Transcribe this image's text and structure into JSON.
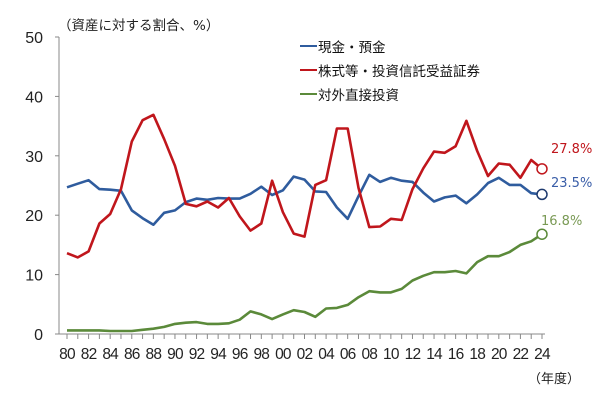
{
  "chart_data": {
    "type": "line",
    "title": "",
    "ylabel": "（資産に対する割合、%）",
    "xlabel": "（年度）",
    "ylim": [
      0,
      50
    ],
    "yticks": [
      0,
      10,
      20,
      30,
      40,
      50
    ],
    "grid": false,
    "legend_position": "top-right inside",
    "x": [
      "80",
      "81",
      "82",
      "83",
      "84",
      "85",
      "86",
      "87",
      "88",
      "89",
      "90",
      "91",
      "92",
      "93",
      "94",
      "95",
      "96",
      "97",
      "98",
      "99",
      "00",
      "01",
      "02",
      "03",
      "04",
      "05",
      "06",
      "07",
      "08",
      "09",
      "10",
      "11",
      "12",
      "13",
      "14",
      "15",
      "16",
      "17",
      "18",
      "19",
      "20",
      "21",
      "22",
      "23",
      "24"
    ],
    "xtick_labels": [
      "80",
      "82",
      "84",
      "86",
      "88",
      "90",
      "92",
      "94",
      "96",
      "98",
      "00",
      "02",
      "04",
      "06",
      "08",
      "10",
      "12",
      "14",
      "16",
      "18",
      "20",
      "22",
      "24"
    ],
    "series": [
      {
        "name": "現金・預金",
        "color": "#2f5c9e",
        "end_label": "23.5%",
        "values": [
          24.7,
          25.3,
          25.9,
          24.4,
          24.3,
          24.1,
          20.8,
          19.5,
          18.4,
          20.4,
          20.8,
          22.2,
          22.8,
          22.6,
          22.9,
          22.8,
          22.8,
          23.6,
          24.8,
          23.4,
          24.2,
          26.5,
          26.0,
          24.0,
          23.9,
          21.3,
          19.4,
          23.2,
          26.8,
          25.6,
          26.3,
          25.8,
          25.6,
          23.8,
          22.3,
          23.0,
          23.3,
          22.0,
          23.5,
          25.4,
          26.3,
          25.1,
          25.1,
          23.7,
          23.5
        ]
      },
      {
        "name": "株式等・投資信託受益証券",
        "color": "#c0161c",
        "end_label": "27.8%",
        "values": [
          13.6,
          12.9,
          13.9,
          18.6,
          20.2,
          24.4,
          32.4,
          36.0,
          36.9,
          32.8,
          28.3,
          21.9,
          21.5,
          22.3,
          21.3,
          22.9,
          19.8,
          17.4,
          18.6,
          25.8,
          20.5,
          16.9,
          16.4,
          25.1,
          25.9,
          34.6,
          34.6,
          24.6,
          18.0,
          18.1,
          19.4,
          19.2,
          24.4,
          27.9,
          30.7,
          30.5,
          31.6,
          35.9,
          30.8,
          26.6,
          28.7,
          28.5,
          26.3,
          29.3,
          27.8
        ]
      },
      {
        "name": "対外直接投資",
        "color": "#5b8a3a",
        "end_label": "16.8%",
        "values": [
          0.6,
          0.6,
          0.6,
          0.6,
          0.5,
          0.5,
          0.5,
          0.7,
          0.9,
          1.2,
          1.7,
          1.9,
          2.0,
          1.7,
          1.7,
          1.8,
          2.4,
          3.8,
          3.3,
          2.5,
          3.3,
          4.0,
          3.7,
          2.9,
          4.3,
          4.4,
          4.9,
          6.2,
          7.2,
          7.0,
          7.0,
          7.6,
          9.0,
          9.8,
          10.4,
          10.4,
          10.6,
          10.2,
          12.1,
          13.1,
          13.1,
          13.8,
          15.0,
          15.6,
          16.8
        ]
      }
    ]
  },
  "labels": {
    "unit": "（資産に対する割合、%）",
    "year": "（年度）"
  },
  "legend": [
    {
      "label": "現金・預金",
      "color": "#2f5c9e"
    },
    {
      "label": "株式等・投資信託受益証券",
      "color": "#c0161c"
    },
    {
      "label": "対外直接投資",
      "color": "#5b8a3a"
    }
  ],
  "end_labels": [
    {
      "text": "27.8%",
      "color": "#c0161c"
    },
    {
      "text": "23.5%",
      "color": "#3a5ea8"
    },
    {
      "text": "16.8%",
      "color": "#7a9a55"
    }
  ]
}
